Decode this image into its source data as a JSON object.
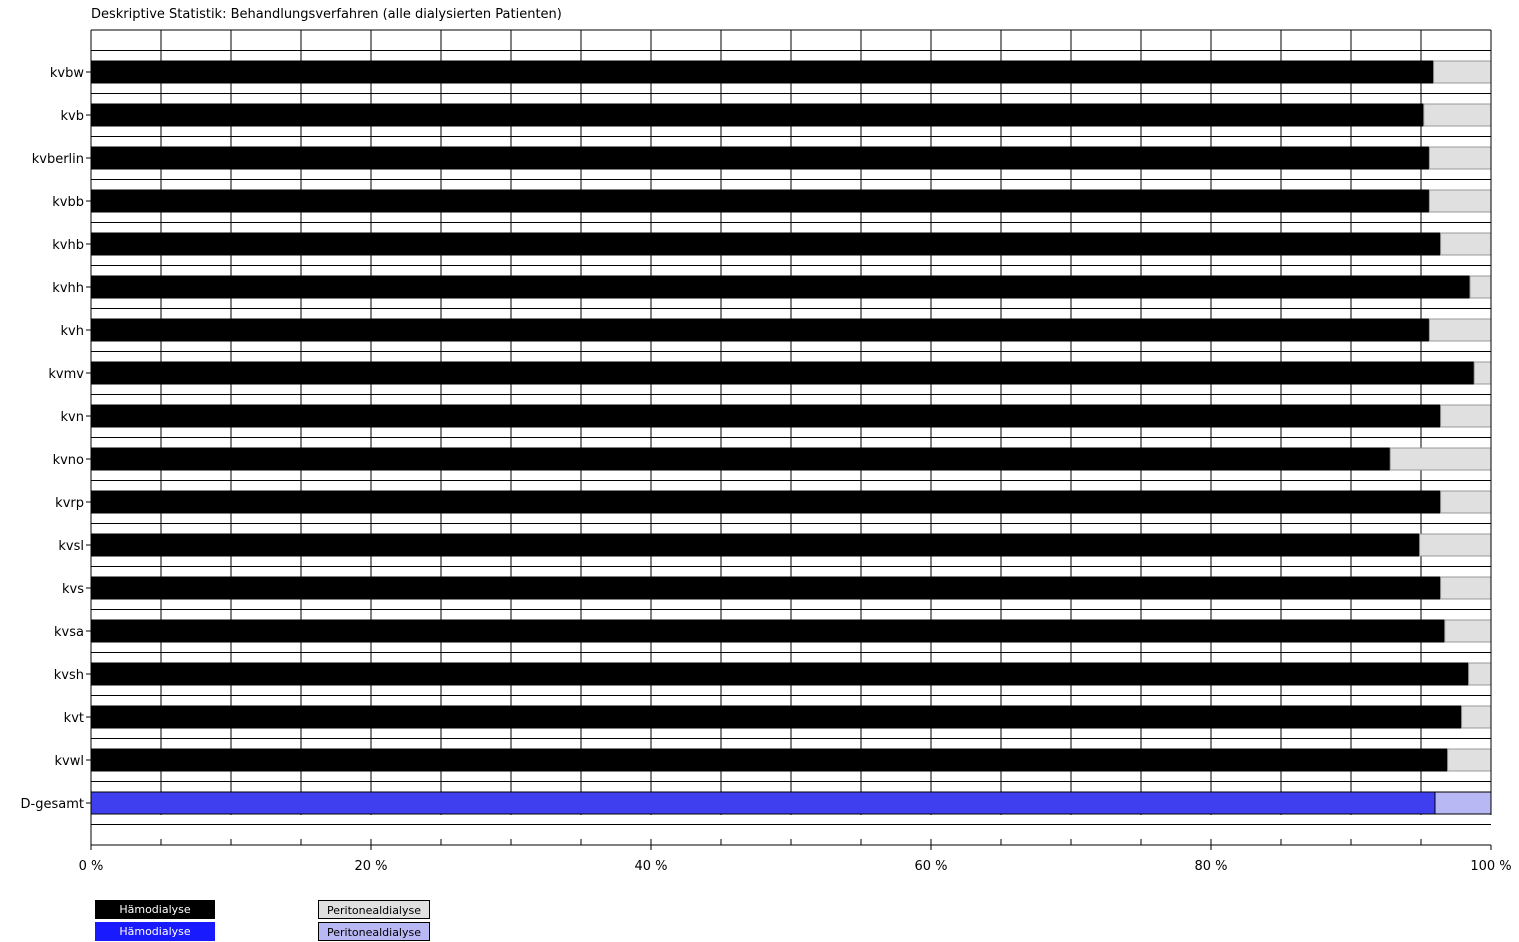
{
  "chart_data": {
    "type": "bar",
    "orientation": "horizontal",
    "stacked": true,
    "title": "Deskriptive Statistik: Behandlungsverfahren (alle dialysierten Patienten)",
    "xlabel": "",
    "ylabel": "",
    "xlim": [
      0,
      100
    ],
    "x_unit": "%",
    "x_ticks": [
      "0 %",
      "20 %",
      "40 %",
      "60 %",
      "80 %",
      "100 %"
    ],
    "grid": true,
    "categories": [
      "kvbw",
      "kvb",
      "kvberlin",
      "kvbb",
      "kvhb",
      "kvhh",
      "kvh",
      "kvmv",
      "kvn",
      "kvno",
      "kvrp",
      "kvsl",
      "kvs",
      "kvsa",
      "kvsh",
      "kvt",
      "kvwl",
      "D-gesamt"
    ],
    "series": [
      {
        "name": "Hämodialyse",
        "values": [
          95.9,
          95.2,
          95.6,
          95.6,
          96.4,
          98.5,
          95.6,
          98.8,
          96.4,
          92.8,
          96.4,
          94.9,
          96.4,
          96.7,
          98.4,
          97.9,
          96.9,
          96.0
        ]
      },
      {
        "name": "Peritonealdialyse",
        "values": [
          4.1,
          4.8,
          4.4,
          4.4,
          3.6,
          1.5,
          4.4,
          1.2,
          3.6,
          7.2,
          3.6,
          5.1,
          3.6,
          3.3,
          1.6,
          2.1,
          3.1,
          4.0
        ]
      }
    ],
    "colors": {
      "regional_hd": "#000000",
      "regional_pd": "#e0e0e0",
      "total_hd": "#3f3ff0",
      "total_pd": "#b8b8f5"
    }
  },
  "legend": {
    "rows": [
      {
        "left": "Hämodialyse",
        "right": "Peritonealdialyse",
        "left_color": "#000000",
        "right_color": "#e0e0e0"
      },
      {
        "left": "Hämodialyse",
        "right": "Peritonealdialyse",
        "left_color": "#1a1aff",
        "right_color": "#b8b8f5"
      }
    ]
  }
}
